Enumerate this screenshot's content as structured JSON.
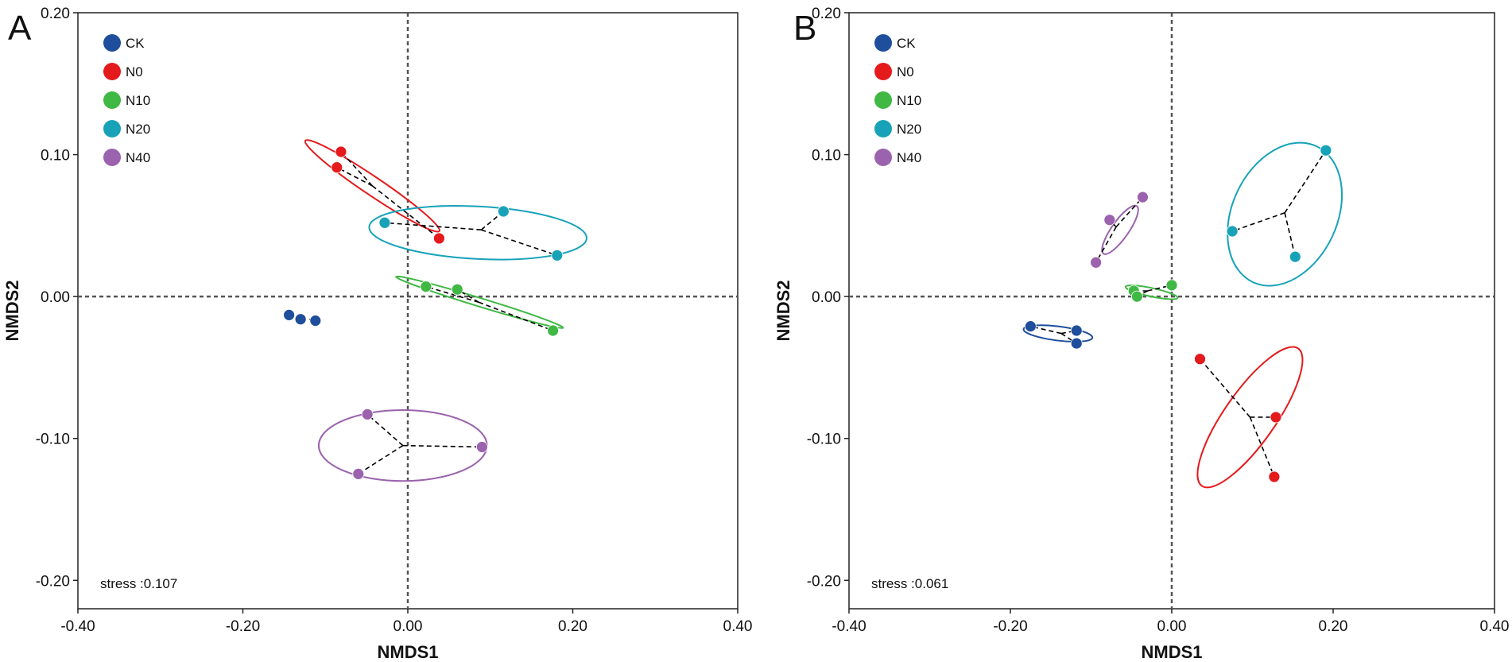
{
  "colors": {
    "CK": "#1f4e9c",
    "N0": "#e41a1c",
    "N10": "#3fb844",
    "N20": "#17a2b8",
    "N40": "#9b62ad",
    "axis": "#222222",
    "zero_line": "#555555",
    "spoke": "#000000"
  },
  "chart_data": [
    {
      "type": "scatter",
      "panel_label": "A",
      "xlabel": "NMDS1",
      "ylabel": "NMDS2",
      "xlim": [
        -0.4,
        0.4
      ],
      "ylim": [
        -0.22,
        0.2
      ],
      "xticks": [
        -0.4,
        -0.2,
        0.0,
        0.2,
        0.4
      ],
      "xtick_labels": [
        "-0.40",
        "-0.20",
        "0.00",
        "0.20",
        "0.40"
      ],
      "yticks": [
        -0.2,
        -0.1,
        0.0,
        0.1,
        0.2
      ],
      "ytick_labels": [
        "-0.20",
        "-0.10",
        "0.00",
        "0.10",
        "0.20"
      ],
      "stress_text": "stress :0.107",
      "legend": [
        "CK",
        "N0",
        "N10",
        "N20",
        "N40"
      ],
      "series": [
        {
          "name": "CK",
          "points": [
            [
              -0.144,
              -0.013
            ],
            [
              -0.13,
              -0.016
            ],
            [
              -0.112,
              -0.017
            ]
          ],
          "centroid": [
            -0.129,
            -0.015
          ],
          "ellipse": null
        },
        {
          "name": "N0",
          "points": [
            [
              -0.081,
              0.102
            ],
            [
              -0.086,
              0.091
            ],
            [
              0.038,
              0.041
            ]
          ],
          "centroid": [
            -0.043,
            0.078
          ],
          "ellipse": {
            "cx": -0.043,
            "cy": 0.078,
            "a": 0.098,
            "b": 0.0065,
            "angle_deg": -34
          }
        },
        {
          "name": "N20",
          "points": [
            [
              -0.028,
              0.052
            ],
            [
              0.116,
              0.06
            ],
            [
              0.181,
              0.029
            ]
          ],
          "centroid": [
            0.089,
            0.047
          ],
          "ellipse": {
            "cx": 0.085,
            "cy": 0.045,
            "a": 0.132,
            "b": 0.0185,
            "angle_deg": -3
          }
        },
        {
          "name": "N10",
          "points": [
            [
              0.022,
              0.007
            ],
            [
              0.06,
              0.005
            ],
            [
              0.176,
              -0.024
            ]
          ],
          "centroid": [
            0.086,
            -0.004
          ],
          "ellipse": {
            "cx": 0.087,
            "cy": -0.004,
            "a": 0.106,
            "b": 0.003,
            "angle_deg": -17
          }
        },
        {
          "name": "N40",
          "points": [
            [
              -0.049,
              -0.083
            ],
            [
              0.09,
              -0.106
            ],
            [
              -0.06,
              -0.125
            ]
          ],
          "centroid": [
            -0.006,
            -0.105
          ],
          "ellipse": {
            "cx": -0.006,
            "cy": -0.105,
            "a": 0.102,
            "b": 0.025,
            "angle_deg": 0
          }
        }
      ]
    },
    {
      "type": "scatter",
      "panel_label": "B",
      "xlabel": "NMDS1",
      "ylabel": "NMDS2",
      "xlim": [
        -0.4,
        0.4
      ],
      "ylim": [
        -0.22,
        0.2
      ],
      "xticks": [
        -0.4,
        -0.2,
        0.0,
        0.2,
        0.4
      ],
      "xtick_labels": [
        "-0.40",
        "-0.20",
        "0.00",
        "0.20",
        "0.40"
      ],
      "yticks": [
        -0.2,
        -0.1,
        0.0,
        0.1,
        0.2
      ],
      "ytick_labels": [
        "-0.20",
        "-0.10",
        "0.00",
        "0.10",
        "0.20"
      ],
      "stress_text": "stress :0.061",
      "legend": [
        "CK",
        "N0",
        "N10",
        "N20",
        "N40"
      ],
      "series": [
        {
          "name": "CK",
          "points": [
            [
              -0.175,
              -0.021
            ],
            [
              -0.118,
              -0.024
            ],
            [
              -0.118,
              -0.033
            ]
          ],
          "centroid": [
            -0.137,
            -0.026
          ],
          "ellipse": {
            "cx": -0.141,
            "cy": -0.026,
            "a": 0.043,
            "b": 0.005,
            "angle_deg": -7
          }
        },
        {
          "name": "N0",
          "points": [
            [
              0.035,
              -0.044
            ],
            [
              0.129,
              -0.085
            ],
            [
              0.127,
              -0.127
            ]
          ],
          "centroid": [
            0.097,
            -0.085
          ],
          "ellipse": {
            "cx": 0.097,
            "cy": -0.085,
            "a": 0.104,
            "b": 0.018,
            "angle_deg": 55
          }
        },
        {
          "name": "N10",
          "points": [
            [
              -0.047,
              0.004
            ],
            [
              -0.043,
              0.0
            ],
            [
              0.0,
              0.008
            ]
          ],
          "centroid": [
            -0.03,
            0.004
          ],
          "ellipse": {
            "cx": -0.025,
            "cy": 0.003,
            "a": 0.033,
            "b": 0.003,
            "angle_deg": -12
          }
        },
        {
          "name": "N20",
          "points": [
            [
              0.075,
              0.046
            ],
            [
              0.191,
              0.103
            ],
            [
              0.153,
              0.028
            ]
          ],
          "centroid": [
            0.14,
            0.059
          ],
          "ellipse": {
            "cx": 0.14,
            "cy": 0.058,
            "a": 0.093,
            "b": 0.037,
            "angle_deg": 65
          }
        },
        {
          "name": "N40",
          "points": [
            [
              -0.077,
              0.054
            ],
            [
              -0.036,
              0.07
            ],
            [
              -0.094,
              0.024
            ]
          ],
          "centroid": [
            -0.069,
            0.049
          ],
          "ellipse": {
            "cx": -0.064,
            "cy": 0.047,
            "a": 0.036,
            "b": 0.006,
            "angle_deg": 55
          }
        }
      ]
    }
  ]
}
